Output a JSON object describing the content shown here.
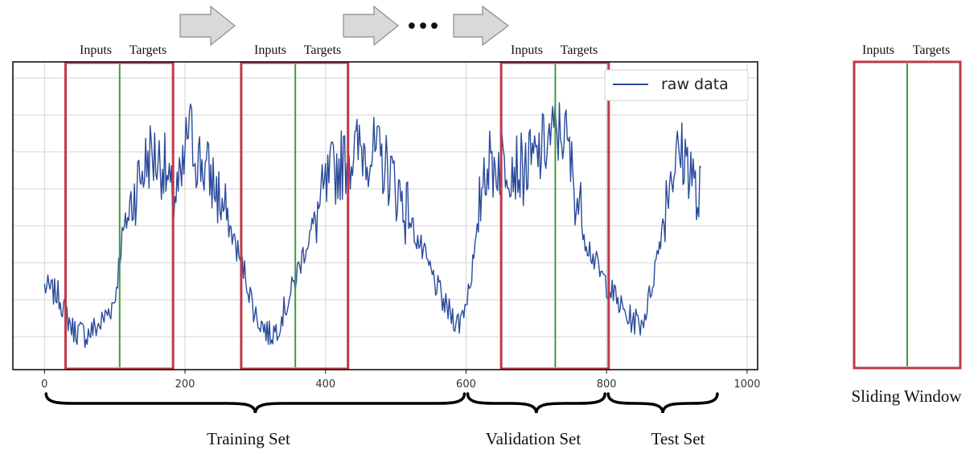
{
  "labels": {
    "inputs": "Inputs",
    "targets": "Targets",
    "legend": "raw data",
    "dots": "•••",
    "training_set": "Training Set",
    "validation_set": "Validation Set",
    "test_set": "Test Set",
    "sliding_window": "Sliding Window"
  },
  "colors": {
    "series": "#2a4b9b",
    "window": "#c0384a",
    "split": "#3f9a3f",
    "arrow_fill": "#d9d9d9",
    "arrow_stroke": "#8c8c8c",
    "grid": "#d3d3d3"
  },
  "chart_data": {
    "type": "line",
    "x_ticks": [
      0,
      200,
      400,
      600,
      800,
      1000
    ],
    "xlim": [
      -45,
      1015
    ],
    "ylim": [
      0,
      1
    ],
    "grid": true,
    "legend_position": "top-right",
    "series": [
      {
        "name": "raw data",
        "anchors": [
          [
            0,
            0.25
          ],
          [
            20,
            0.22
          ],
          [
            40,
            0.1
          ],
          [
            60,
            0.08
          ],
          [
            80,
            0.12
          ],
          [
            100,
            0.2
          ],
          [
            110,
            0.42
          ],
          [
            130,
            0.6
          ],
          [
            150,
            0.72
          ],
          [
            170,
            0.68
          ],
          [
            180,
            0.55
          ],
          [
            195,
            0.6
          ],
          [
            205,
            0.82
          ],
          [
            215,
            0.72
          ],
          [
            240,
            0.62
          ],
          [
            265,
            0.45
          ],
          [
            285,
            0.3
          ],
          [
            300,
            0.15
          ],
          [
            320,
            0.08
          ],
          [
            330,
            0.1
          ],
          [
            350,
            0.22
          ],
          [
            370,
            0.38
          ],
          [
            390,
            0.52
          ],
          [
            410,
            0.65
          ],
          [
            430,
            0.7
          ],
          [
            450,
            0.74
          ],
          [
            470,
            0.72
          ],
          [
            490,
            0.66
          ],
          [
            510,
            0.55
          ],
          [
            530,
            0.42
          ],
          [
            550,
            0.3
          ],
          [
            570,
            0.18
          ],
          [
            590,
            0.12
          ],
          [
            600,
            0.2
          ],
          [
            615,
            0.4
          ],
          [
            625,
            0.68
          ],
          [
            640,
            0.68
          ],
          [
            660,
            0.7
          ],
          [
            680,
            0.66
          ],
          [
            700,
            0.7
          ],
          [
            720,
            0.78
          ],
          [
            740,
            0.8
          ],
          [
            755,
            0.6
          ],
          [
            770,
            0.42
          ],
          [
            790,
            0.3
          ],
          [
            810,
            0.22
          ],
          [
            830,
            0.14
          ],
          [
            850,
            0.12
          ],
          [
            860,
            0.2
          ],
          [
            875,
            0.4
          ],
          [
            890,
            0.65
          ],
          [
            905,
            0.72
          ],
          [
            920,
            0.68
          ],
          [
            930,
            0.52
          ],
          [
            935,
            0.6
          ]
        ]
      }
    ],
    "windows": [
      {
        "start": 30,
        "split": 107,
        "end": 183
      },
      {
        "start": 280,
        "split": 357,
        "end": 432
      },
      {
        "start": 650,
        "split": 727,
        "end": 803
      }
    ],
    "splits": [
      {
        "name": "Training Set",
        "start": 0,
        "end": 600
      },
      {
        "name": "Validation Set",
        "start": 600,
        "end": 800
      },
      {
        "name": "Test Set",
        "start": 800,
        "end": 960
      }
    ]
  }
}
